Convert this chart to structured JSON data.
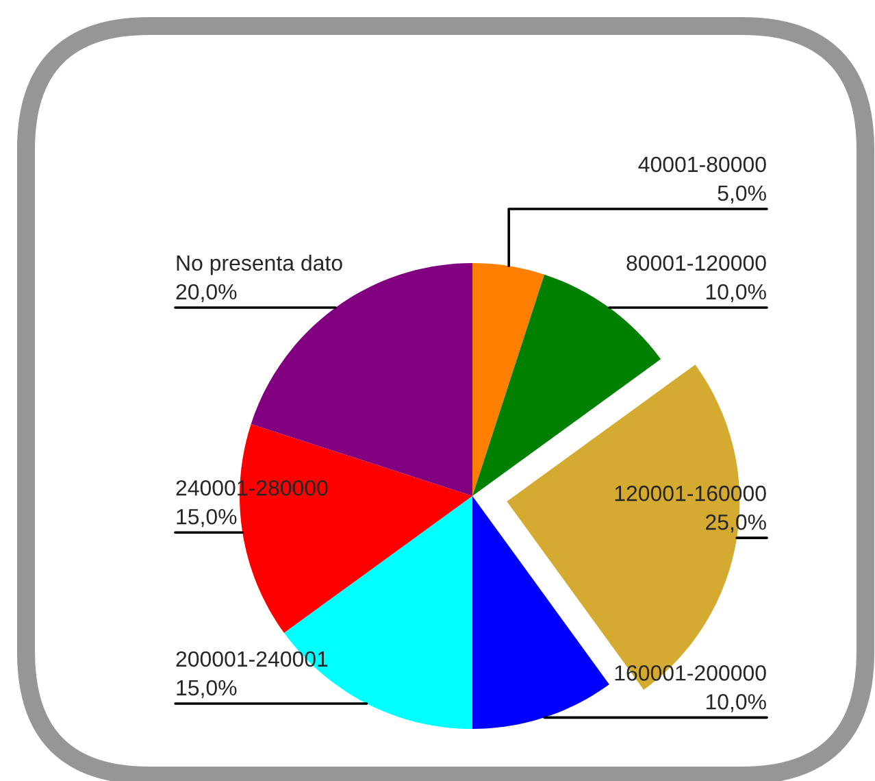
{
  "chart_data": {
    "type": "pie",
    "categories": [
      "40001-80000",
      "80001-120000",
      "120001-160000",
      "160001-200000",
      "200001-240001",
      "240001-280000",
      "No presenta dato"
    ],
    "values": [
      5,
      10,
      25,
      10,
      15,
      15,
      20
    ],
    "colors": [
      "#ff8000",
      "#008000",
      "#d4aa30",
      "#0000ff",
      "#00ffff",
      "#ff0000",
      "#800080"
    ],
    "value_labels": [
      "5,0%",
      "10,0%",
      "25,0%",
      "10,0%",
      "15,0%",
      "15,0%",
      "20,0%"
    ]
  }
}
